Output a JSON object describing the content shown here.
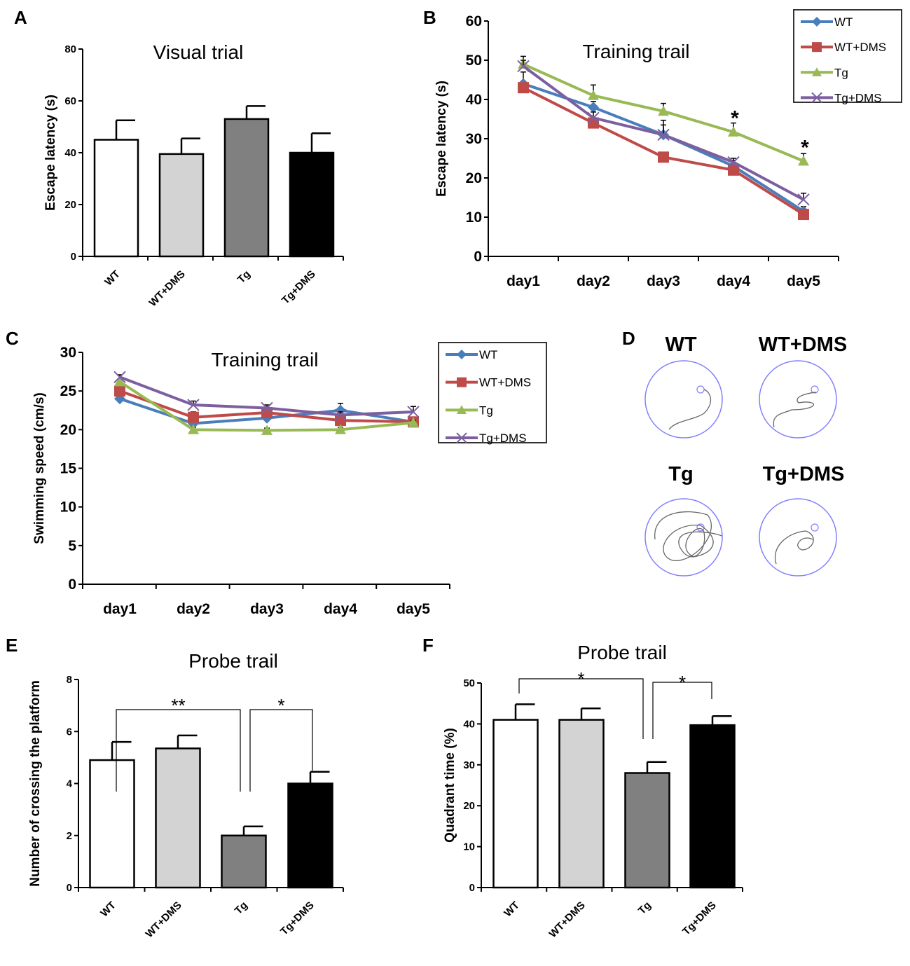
{
  "chart_data": [
    {
      "panel": "A",
      "type": "bar",
      "title": "Visual trial",
      "ylabel": "Escape latency (s)",
      "ylim": [
        0,
        80
      ],
      "yticks": [
        0,
        20,
        40,
        60,
        80
      ],
      "categories": [
        "WT",
        "WT+DMS",
        "Tg",
        "Tg+DMS"
      ],
      "values": [
        45,
        39.5,
        53,
        40
      ],
      "errors": [
        7.5,
        6,
        5,
        7.5
      ],
      "bar_colors": [
        "#ffffff",
        "#d3d3d3",
        "#808080",
        "#000000"
      ]
    },
    {
      "panel": "B",
      "type": "line",
      "title": "Training trail",
      "ylabel": "Escape latency (s)",
      "ylim": [
        0,
        60
      ],
      "yticks": [
        0,
        10,
        20,
        30,
        40,
        50,
        60
      ],
      "categories": [
        "day1",
        "day2",
        "day3",
        "day4",
        "day5"
      ],
      "legend": "top-right",
      "series": [
        {
          "name": "WT",
          "color": "#4a7ebb",
          "marker": "diamond",
          "values": [
            44,
            38,
            31,
            23,
            11.5
          ],
          "errors": [
            3,
            1.5,
            3.7,
            1.5,
            1.2
          ]
        },
        {
          "name": "WT+DMS",
          "color": "#be4b48",
          "marker": "square",
          "values": [
            43,
            34,
            25.3,
            22,
            10.7
          ],
          "errors": [
            1,
            1,
            1,
            1,
            1
          ]
        },
        {
          "name": "Tg",
          "color": "#98b954",
          "marker": "triangle",
          "values": [
            49,
            41,
            37,
            31.7,
            24.3
          ],
          "errors": [
            2,
            2.7,
            2,
            2.3,
            1.9
          ]
        },
        {
          "name": "Tg+DMS",
          "color": "#7d5fa0",
          "marker": "x",
          "values": [
            48.5,
            35.3,
            31,
            24,
            14.5
          ],
          "errors": [
            1.5,
            1.5,
            2.5,
            1,
            1.6
          ]
        }
      ],
      "annotations": [
        {
          "text": "*",
          "category": "day4",
          "y": 36
        },
        {
          "text": "*",
          "category": "day5",
          "y": 28.5
        }
      ]
    },
    {
      "panel": "C",
      "type": "line",
      "title": "Training trail",
      "ylabel": "Swimming speed  (cm/s)",
      "ylim": [
        0,
        30
      ],
      "yticks": [
        0,
        5,
        10,
        15,
        20,
        25,
        30
      ],
      "categories": [
        "day1",
        "day2",
        "day3",
        "day4",
        "day5"
      ],
      "legend": "top-right",
      "series": [
        {
          "name": "WT",
          "color": "#4a7ebb",
          "marker": "diamond",
          "values": [
            24,
            20.8,
            21.5,
            22.5,
            21
          ],
          "errors": [
            0.3,
            0.4,
            0.5,
            0.9,
            0.3
          ]
        },
        {
          "name": "WT+DMS",
          "color": "#be4b48",
          "marker": "square",
          "values": [
            25,
            21.6,
            22.2,
            21.2,
            21
          ],
          "errors": [
            0.3,
            0.7,
            0.5,
            0.4,
            0.4
          ]
        },
        {
          "name": "Tg",
          "color": "#98b954",
          "marker": "triangle",
          "values": [
            26.2,
            20,
            19.9,
            20,
            20.9
          ],
          "errors": [
            0.3,
            0.3,
            0.3,
            0.3,
            0.3
          ]
        },
        {
          "name": "Tg+DMS",
          "color": "#7d5fa0",
          "marker": "x",
          "values": [
            26.8,
            23.2,
            22.8,
            21.9,
            22.3
          ],
          "errors": [
            0.3,
            0.5,
            0.4,
            0.4,
            0.7
          ]
        }
      ]
    },
    {
      "panel": "E",
      "type": "bar",
      "title": "Probe trail",
      "ylabel": "Number of crossing the platform",
      "ylim": [
        0,
        8
      ],
      "yticks": [
        0,
        2,
        4,
        6,
        8
      ],
      "categories": [
        "WT",
        "WT+DMS",
        "Tg",
        "Tg+DMS"
      ],
      "values": [
        4.9,
        5.35,
        2.0,
        4.0
      ],
      "errors": [
        0.7,
        0.5,
        0.35,
        0.45
      ],
      "bar_colors": [
        "#ffffff",
        "#d3d3d3",
        "#808080",
        "#000000"
      ],
      "significance": [
        {
          "from": "WT",
          "to": "Tg",
          "text": "**"
        },
        {
          "from": "Tg",
          "to": "Tg+DMS",
          "text": "*"
        }
      ]
    },
    {
      "panel": "F",
      "type": "bar",
      "title": "Probe trail",
      "ylabel": "Quadrant time (%)",
      "ylim": [
        0,
        50
      ],
      "yticks": [
        0,
        10,
        20,
        30,
        40,
        50
      ],
      "categories": [
        "WT",
        "WT+DMS",
        "Tg",
        "Tg+DMS"
      ],
      "values": [
        41,
        41,
        28,
        39.7
      ],
      "errors": [
        3.8,
        2.8,
        2.7,
        2.2
      ],
      "bar_colors": [
        "#ffffff",
        "#d3d3d3",
        "#808080",
        "#000000"
      ],
      "significance": [
        {
          "from": "WT",
          "to": "Tg",
          "text": "*"
        },
        {
          "from": "Tg",
          "to": "Tg+DMS",
          "text": "*"
        }
      ]
    }
  ],
  "panel_d": {
    "panel": "D",
    "groups": [
      "WT",
      "WT+DMS",
      "Tg",
      "Tg+DMS"
    ],
    "circle_color": "#8080ff"
  }
}
